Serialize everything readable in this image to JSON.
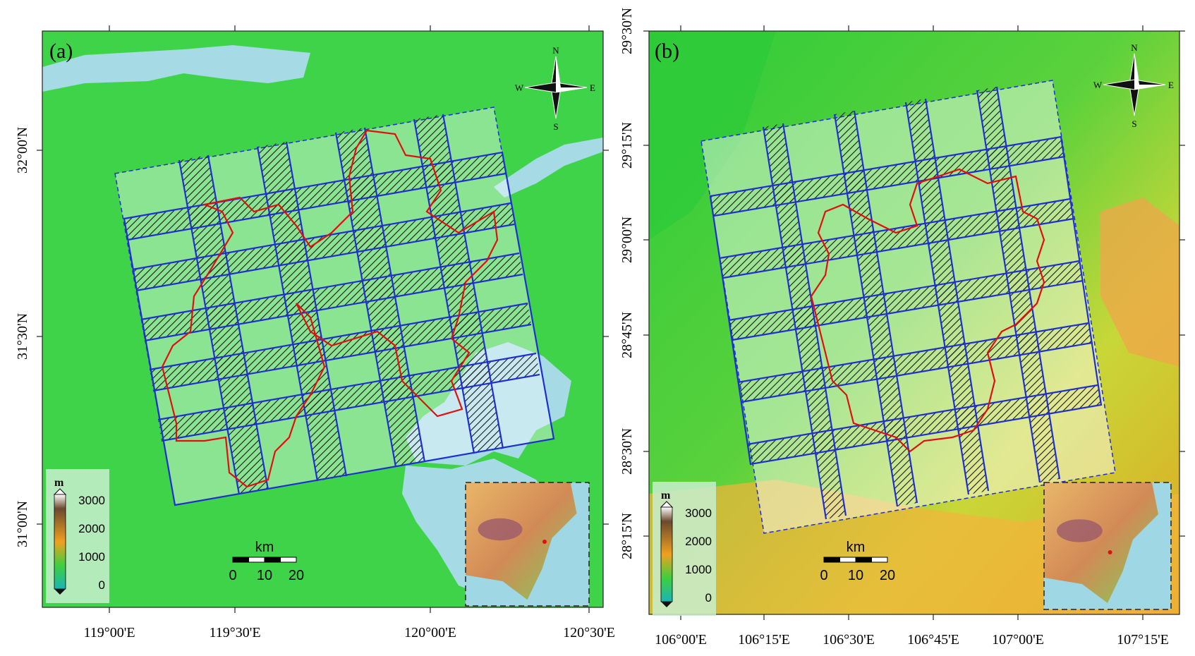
{
  "panels": [
    {
      "label": "(a)",
      "base_color": "#3fd34a",
      "has_terrain_gradient": false,
      "lon_ticks": [
        "119°00'E",
        "119°30'E",
        "120°00'E",
        "120°30'E"
      ],
      "lat_ticks": [
        "32°00'N",
        "31°30'N",
        "31°00'N"
      ],
      "compass": {
        "n": "N",
        "s": "S",
        "e": "E",
        "w": "W"
      },
      "legend": {
        "unit": "m",
        "values": [
          "3000",
          "2000",
          "1000",
          "0"
        ]
      },
      "scale": {
        "unit": "km",
        "values": [
          "0",
          "10",
          "20"
        ]
      }
    },
    {
      "label": "(b)",
      "base_color": "#33cc3a",
      "has_terrain_gradient": true,
      "lon_ticks": [
        "106°00'E",
        "106°15'E",
        "106°30'E",
        "106°45'E",
        "107°00'E",
        "107°15'E"
      ],
      "lat_ticks": [
        "29°30'N",
        "29°15'N",
        "29°00'N",
        "28°45'N",
        "28°30'N",
        "28°15'N"
      ],
      "compass": {
        "n": "N",
        "s": "S",
        "e": "E",
        "w": "W"
      },
      "legend": {
        "unit": "m",
        "values": [
          "3000",
          "2000",
          "1000",
          "0"
        ]
      },
      "scale": {
        "unit": "km",
        "values": [
          "0",
          "10",
          "20"
        ]
      }
    }
  ],
  "colors": {
    "water": "#a6dbe6",
    "grid": "#1f2fd0",
    "boundary": "#e01010",
    "legend_top": "#ffffff",
    "legend_high": "#6b4a2e",
    "legend_mid": "#f0a020",
    "legend_low": "#3ecf3e",
    "legend_bottom": "#19b5b5"
  }
}
